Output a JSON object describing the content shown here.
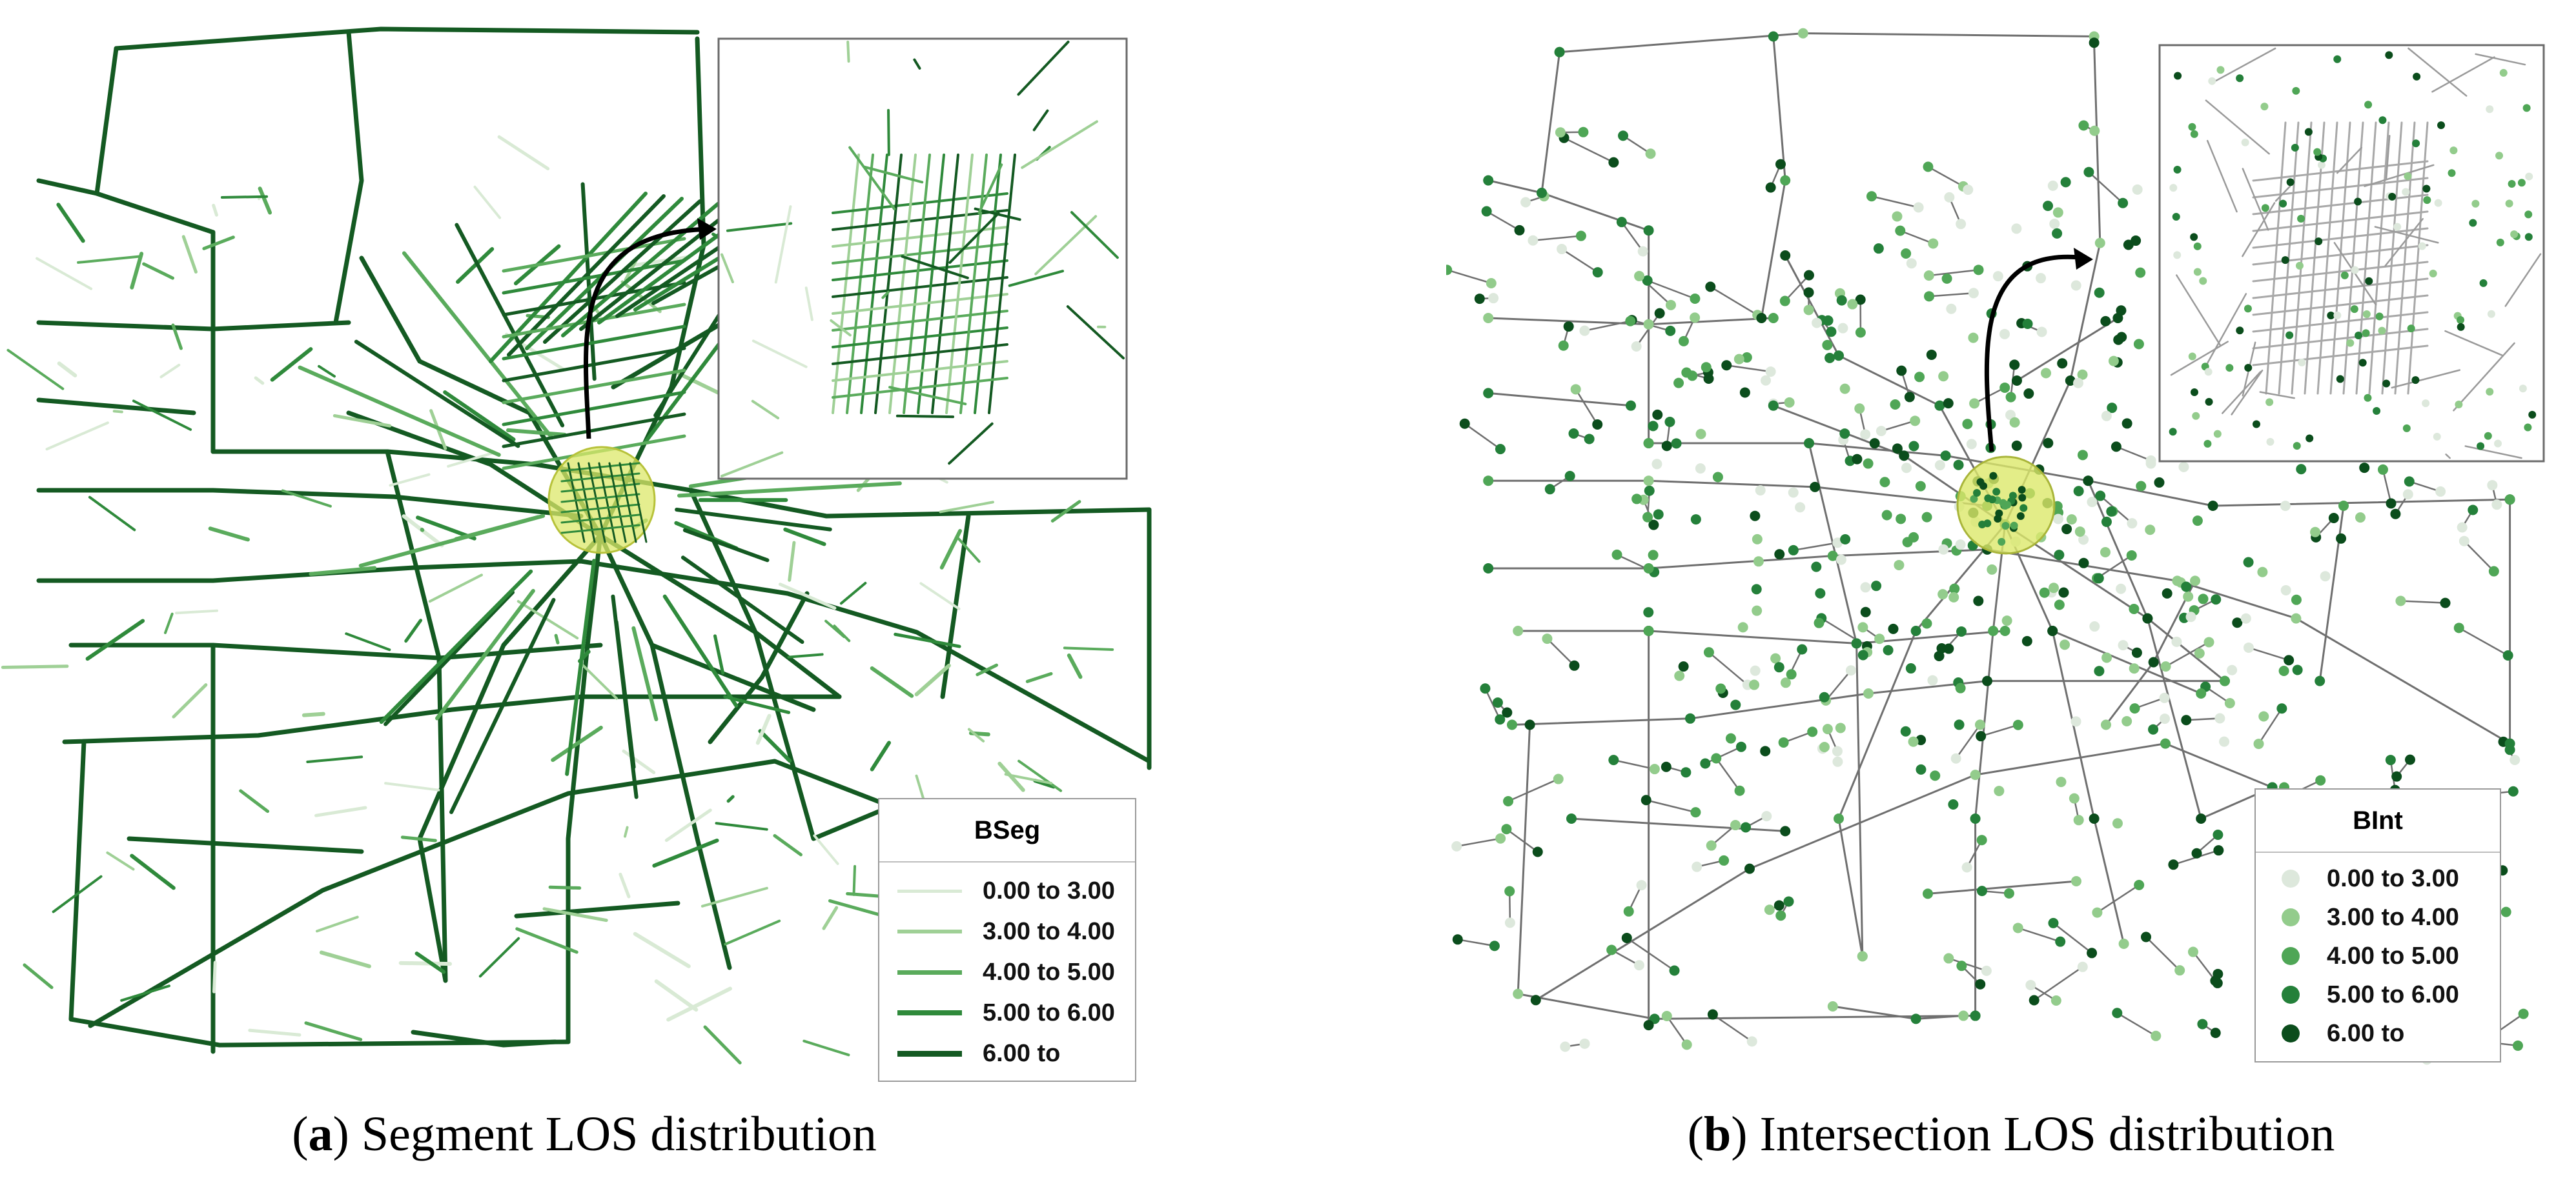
{
  "panel_a": {
    "caption_letter": "a",
    "caption_text": " Segment LOS distribution",
    "legend_title": "BSeg",
    "legend_items": [
      {
        "label": "0.00 to 3.00",
        "color": "#d9ead5"
      },
      {
        "label": "3.00 to 4.00",
        "color": "#9fd096"
      },
      {
        "label": "4.00 to 5.00",
        "color": "#5aab5c"
      },
      {
        "label": "5.00 to 6.00",
        "color": "#2f8a3b"
      },
      {
        "label": "6.00 to",
        "color": "#145a22"
      }
    ]
  },
  "panel_b": {
    "caption_letter": "b",
    "caption_text": " Intersection LOS distribution",
    "legend_title": "BInt",
    "legend_items": [
      {
        "label": "0.00 to 3.00",
        "color": "#dde8dc"
      },
      {
        "label": "3.00 to 4.00",
        "color": "#93cc8c"
      },
      {
        "label": "4.00 to 5.00",
        "color": "#4fa656"
      },
      {
        "label": "5.00 to 6.00",
        "color": "#24803a"
      },
      {
        "label": "6.00 to",
        "color": "#0b4d1c"
      }
    ]
  },
  "colors": {
    "highlight_fill": "#dce86a",
    "network_gray": "#6f6f6f",
    "arrow": "#000000"
  }
}
